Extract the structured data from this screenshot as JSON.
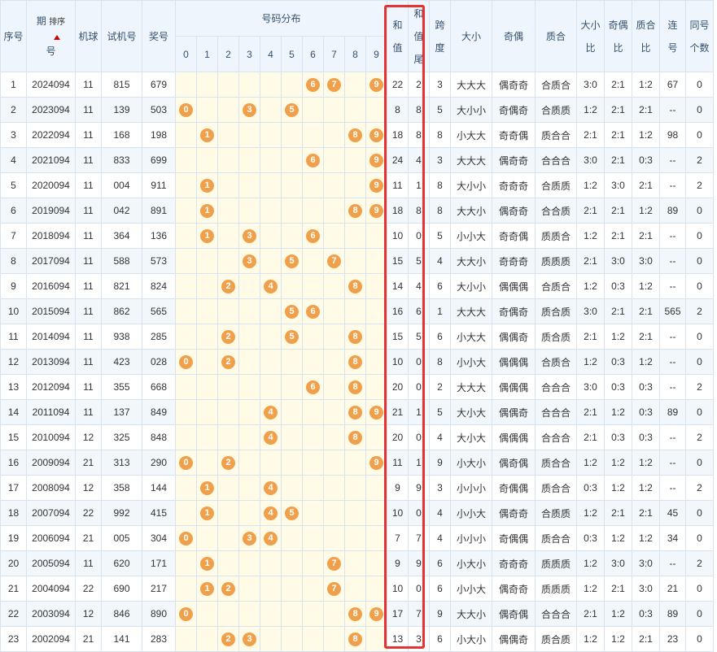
{
  "headers": {
    "seq": "序号",
    "period_a": "期",
    "period_b": "号",
    "sort_label": "排序",
    "machine": "机球",
    "trial": "试机号",
    "prize": "奖号",
    "dist_group": "号码分布",
    "digits": [
      "0",
      "1",
      "2",
      "3",
      "4",
      "5",
      "6",
      "7",
      "8",
      "9"
    ],
    "sum_a": "和",
    "sum_b": "值",
    "sumtail_a": "和",
    "sumtail_b": "值",
    "sumtail_c": "尾",
    "span_a": "跨",
    "span_b": "度",
    "size": "大小",
    "parity": "奇偶",
    "prime": "质合",
    "size_ratio_a": "大小",
    "size_ratio_b": "比",
    "parity_ratio_a": "奇偶",
    "parity_ratio_b": "比",
    "prime_ratio_a": "质合",
    "prime_ratio_b": "比",
    "consec_a": "连",
    "consec_b": "号",
    "same_a": "同号",
    "same_b": "个数"
  },
  "colors": {
    "ball": "#f0a04b",
    "highlight_border": "#e53232",
    "header_bg": "#eef5fc",
    "dist_bg": "#fffbe6",
    "sort_arrow": "#cc0000"
  },
  "rows": [
    {
      "seq": "1",
      "period": "2024094",
      "machine": "11",
      "trial": "815",
      "prize": "679",
      "balls": [
        "6",
        "7",
        "9"
      ],
      "sum": "22",
      "tail": "2",
      "span": "3",
      "size": "大大大",
      "parity": "偶奇奇",
      "prime": "合质合",
      "size_ratio": "3:0",
      "parity_ratio": "2:1",
      "prime_ratio": "1:2",
      "consec": "67",
      "same": "0"
    },
    {
      "seq": "2",
      "period": "2023094",
      "machine": "11",
      "trial": "139",
      "prize": "503",
      "balls": [
        "0",
        "3",
        "5"
      ],
      "sum": "8",
      "tail": "8",
      "span": "5",
      "size": "大小小",
      "parity": "奇偶奇",
      "prime": "合质质",
      "size_ratio": "1:2",
      "parity_ratio": "2:1",
      "prime_ratio": "2:1",
      "consec": "--",
      "same": "0"
    },
    {
      "seq": "3",
      "period": "2022094",
      "machine": "11",
      "trial": "168",
      "prize": "198",
      "balls": [
        "1",
        "8",
        "9"
      ],
      "sum": "18",
      "tail": "8",
      "span": "8",
      "size": "小大大",
      "parity": "奇奇偶",
      "prime": "质合合",
      "size_ratio": "2:1",
      "parity_ratio": "2:1",
      "prime_ratio": "1:2",
      "consec": "98",
      "same": "0"
    },
    {
      "seq": "4",
      "period": "2021094",
      "machine": "11",
      "trial": "833",
      "prize": "699",
      "balls": [
        "6",
        "9"
      ],
      "sum": "24",
      "tail": "4",
      "span": "3",
      "size": "大大大",
      "parity": "偶奇奇",
      "prime": "合合合",
      "size_ratio": "3:0",
      "parity_ratio": "2:1",
      "prime_ratio": "0:3",
      "consec": "--",
      "same": "2"
    },
    {
      "seq": "5",
      "period": "2020094",
      "machine": "11",
      "trial": "004",
      "prize": "911",
      "balls": [
        "1",
        "9"
      ],
      "sum": "11",
      "tail": "1",
      "span": "8",
      "size": "大小小",
      "parity": "奇奇奇",
      "prime": "合质质",
      "size_ratio": "1:2",
      "parity_ratio": "3:0",
      "prime_ratio": "2:1",
      "consec": "--",
      "same": "2"
    },
    {
      "seq": "6",
      "period": "2019094",
      "machine": "11",
      "trial": "042",
      "prize": "891",
      "balls": [
        "1",
        "8",
        "9"
      ],
      "sum": "18",
      "tail": "8",
      "span": "8",
      "size": "大大小",
      "parity": "偶奇奇",
      "prime": "合合质",
      "size_ratio": "2:1",
      "parity_ratio": "2:1",
      "prime_ratio": "1:2",
      "consec": "89",
      "same": "0"
    },
    {
      "seq": "7",
      "period": "2018094",
      "machine": "11",
      "trial": "364",
      "prize": "136",
      "balls": [
        "1",
        "3",
        "6"
      ],
      "sum": "10",
      "tail": "0",
      "span": "5",
      "size": "小小大",
      "parity": "奇奇偶",
      "prime": "质质合",
      "size_ratio": "1:2",
      "parity_ratio": "2:1",
      "prime_ratio": "2:1",
      "consec": "--",
      "same": "0"
    },
    {
      "seq": "8",
      "period": "2017094",
      "machine": "11",
      "trial": "588",
      "prize": "573",
      "balls": [
        "3",
        "5",
        "7"
      ],
      "sum": "15",
      "tail": "5",
      "span": "4",
      "size": "大大小",
      "parity": "奇奇奇",
      "prime": "质质质",
      "size_ratio": "2:1",
      "parity_ratio": "3:0",
      "prime_ratio": "3:0",
      "consec": "--",
      "same": "0"
    },
    {
      "seq": "9",
      "period": "2016094",
      "machine": "11",
      "trial": "821",
      "prize": "824",
      "balls": [
        "2",
        "4",
        "8"
      ],
      "sum": "14",
      "tail": "4",
      "span": "6",
      "size": "大小小",
      "parity": "偶偶偶",
      "prime": "合质合",
      "size_ratio": "1:2",
      "parity_ratio": "0:3",
      "prime_ratio": "1:2",
      "consec": "--",
      "same": "0"
    },
    {
      "seq": "10",
      "period": "2015094",
      "machine": "11",
      "trial": "862",
      "prize": "565",
      "balls": [
        "5",
        "6"
      ],
      "sum": "16",
      "tail": "6",
      "span": "1",
      "size": "大大大",
      "parity": "奇偶奇",
      "prime": "质合质",
      "size_ratio": "3:0",
      "parity_ratio": "2:1",
      "prime_ratio": "2:1",
      "consec": "565",
      "same": "2"
    },
    {
      "seq": "11",
      "period": "2014094",
      "machine": "11",
      "trial": "938",
      "prize": "285",
      "balls": [
        "2",
        "5",
        "8"
      ],
      "sum": "15",
      "tail": "5",
      "span": "6",
      "size": "小大大",
      "parity": "偶偶奇",
      "prime": "质合质",
      "size_ratio": "2:1",
      "parity_ratio": "1:2",
      "prime_ratio": "2:1",
      "consec": "--",
      "same": "0"
    },
    {
      "seq": "12",
      "period": "2013094",
      "machine": "11",
      "trial": "423",
      "prize": "028",
      "balls": [
        "0",
        "2",
        "8"
      ],
      "sum": "10",
      "tail": "0",
      "span": "8",
      "size": "小小大",
      "parity": "偶偶偶",
      "prime": "合质合",
      "size_ratio": "1:2",
      "parity_ratio": "0:3",
      "prime_ratio": "1:2",
      "consec": "--",
      "same": "0"
    },
    {
      "seq": "13",
      "period": "2012094",
      "machine": "11",
      "trial": "355",
      "prize": "668",
      "balls": [
        "6",
        "8"
      ],
      "sum": "20",
      "tail": "0",
      "span": "2",
      "size": "大大大",
      "parity": "偶偶偶",
      "prime": "合合合",
      "size_ratio": "3:0",
      "parity_ratio": "0:3",
      "prime_ratio": "0:3",
      "consec": "--",
      "same": "2"
    },
    {
      "seq": "14",
      "period": "2011094",
      "machine": "11",
      "trial": "137",
      "prize": "849",
      "balls": [
        "4",
        "8",
        "9"
      ],
      "sum": "21",
      "tail": "1",
      "span": "5",
      "size": "大小大",
      "parity": "偶偶奇",
      "prime": "合合合",
      "size_ratio": "2:1",
      "parity_ratio": "1:2",
      "prime_ratio": "0:3",
      "consec": "89",
      "same": "0"
    },
    {
      "seq": "15",
      "period": "2010094",
      "machine": "12",
      "trial": "325",
      "prize": "848",
      "balls": [
        "4",
        "8"
      ],
      "sum": "20",
      "tail": "0",
      "span": "4",
      "size": "大小大",
      "parity": "偶偶偶",
      "prime": "合合合",
      "size_ratio": "2:1",
      "parity_ratio": "0:3",
      "prime_ratio": "0:3",
      "consec": "--",
      "same": "2"
    },
    {
      "seq": "16",
      "period": "2009094",
      "machine": "21",
      "trial": "313",
      "prize": "290",
      "balls": [
        "0",
        "2",
        "9"
      ],
      "sum": "11",
      "tail": "1",
      "span": "9",
      "size": "小大小",
      "parity": "偶奇偶",
      "prime": "质合合",
      "size_ratio": "1:2",
      "parity_ratio": "1:2",
      "prime_ratio": "1:2",
      "consec": "--",
      "same": "0"
    },
    {
      "seq": "17",
      "period": "2008094",
      "machine": "12",
      "trial": "358",
      "prize": "144",
      "balls": [
        "1",
        "4"
      ],
      "sum": "9",
      "tail": "9",
      "span": "3",
      "size": "小小小",
      "parity": "奇偶偶",
      "prime": "质合合",
      "size_ratio": "0:3",
      "parity_ratio": "1:2",
      "prime_ratio": "1:2",
      "consec": "--",
      "same": "2"
    },
    {
      "seq": "18",
      "period": "2007094",
      "machine": "22",
      "trial": "992",
      "prize": "415",
      "balls": [
        "1",
        "4",
        "5"
      ],
      "sum": "10",
      "tail": "0",
      "span": "4",
      "size": "小小大",
      "parity": "偶奇奇",
      "prime": "合质质",
      "size_ratio": "1:2",
      "parity_ratio": "2:1",
      "prime_ratio": "2:1",
      "consec": "45",
      "same": "0"
    },
    {
      "seq": "19",
      "period": "2006094",
      "machine": "21",
      "trial": "005",
      "prize": "304",
      "balls": [
        "0",
        "3",
        "4"
      ],
      "sum": "7",
      "tail": "7",
      "span": "4",
      "size": "小小小",
      "parity": "奇偶偶",
      "prime": "质合合",
      "size_ratio": "0:3",
      "parity_ratio": "1:2",
      "prime_ratio": "1:2",
      "consec": "34",
      "same": "0"
    },
    {
      "seq": "20",
      "period": "2005094",
      "machine": "11",
      "trial": "620",
      "prize": "171",
      "balls": [
        "1",
        "7"
      ],
      "sum": "9",
      "tail": "9",
      "span": "6",
      "size": "小大小",
      "parity": "奇奇奇",
      "prime": "质质质",
      "size_ratio": "1:2",
      "parity_ratio": "3:0",
      "prime_ratio": "3:0",
      "consec": "--",
      "same": "2"
    },
    {
      "seq": "21",
      "period": "2004094",
      "machine": "22",
      "trial": "690",
      "prize": "217",
      "balls": [
        "1",
        "2",
        "7"
      ],
      "sum": "10",
      "tail": "0",
      "span": "6",
      "size": "小小大",
      "parity": "偶奇奇",
      "prime": "质质质",
      "size_ratio": "1:2",
      "parity_ratio": "2:1",
      "prime_ratio": "3:0",
      "consec": "21",
      "same": "0"
    },
    {
      "seq": "22",
      "period": "2003094",
      "machine": "12",
      "trial": "846",
      "prize": "890",
      "balls": [
        "0",
        "8",
        "9"
      ],
      "sum": "17",
      "tail": "7",
      "span": "9",
      "size": "大大小",
      "parity": "偶奇偶",
      "prime": "合合合",
      "size_ratio": "2:1",
      "parity_ratio": "1:2",
      "prime_ratio": "0:3",
      "consec": "89",
      "same": "0"
    },
    {
      "seq": "23",
      "period": "2002094",
      "machine": "21",
      "trial": "141",
      "prize": "283",
      "balls": [
        "2",
        "3",
        "8"
      ],
      "sum": "13",
      "tail": "3",
      "span": "6",
      "size": "小大小",
      "parity": "偶偶奇",
      "prime": "质合质",
      "size_ratio": "1:2",
      "parity_ratio": "1:2",
      "prime_ratio": "2:1",
      "consec": "23",
      "same": "0"
    }
  ]
}
